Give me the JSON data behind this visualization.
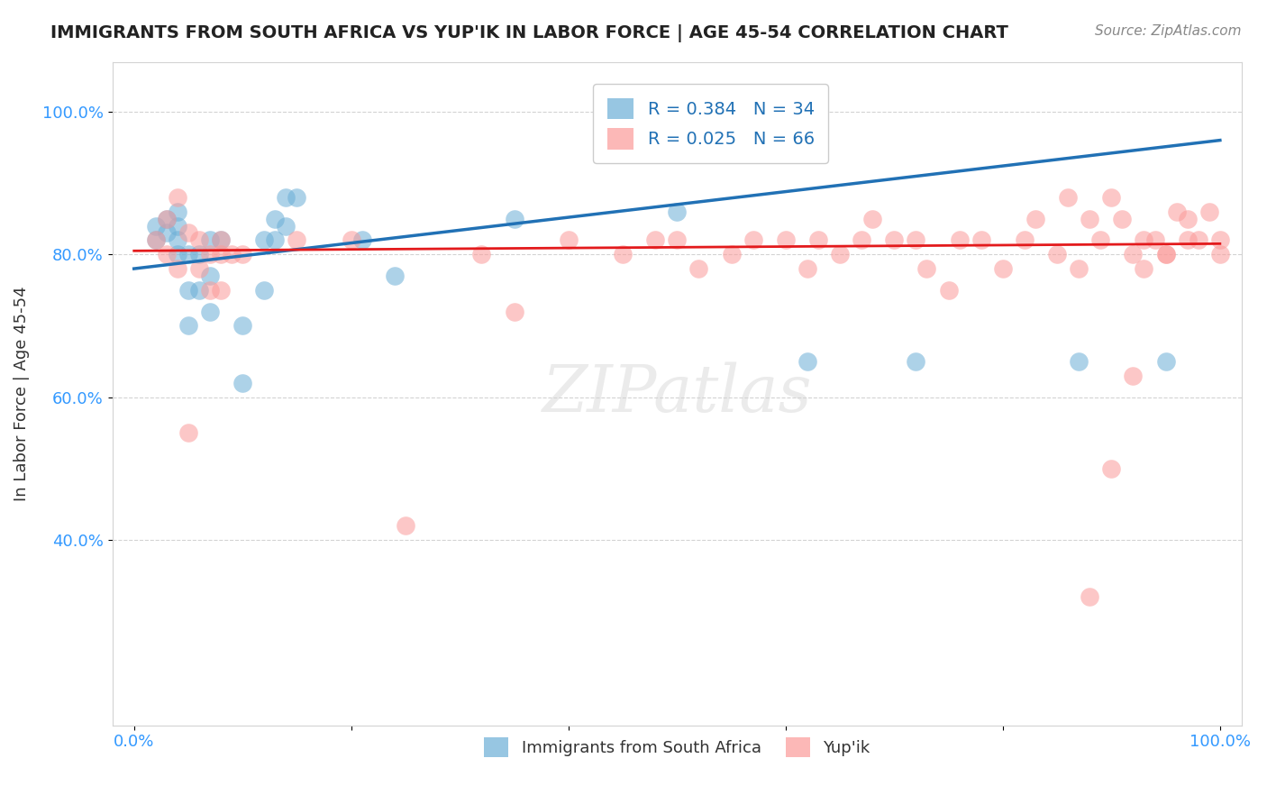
{
  "title": "IMMIGRANTS FROM SOUTH AFRICA VS YUP'IK IN LABOR FORCE | AGE 45-54 CORRELATION CHART",
  "source": "Source: ZipAtlas.com",
  "xlabel": "",
  "ylabel": "In Labor Force | Age 45-54",
  "xlim": [
    0.0,
    1.0
  ],
  "ylim": [
    0.2,
    1.05
  ],
  "xticks": [
    0.0,
    0.2,
    0.4,
    0.6,
    0.8,
    1.0
  ],
  "xtick_labels": [
    "0.0%",
    "",
    "",
    "",
    "",
    "100.0%"
  ],
  "ytick_labels": [
    "40.0%",
    "60.0%",
    "80.0%",
    "100.0%"
  ],
  "yticks": [
    0.4,
    0.6,
    0.8,
    1.0
  ],
  "legend_entries": [
    "Immigrants from South Africa",
    "Yup'ik"
  ],
  "R_blue": 0.384,
  "N_blue": 34,
  "R_pink": 0.025,
  "N_pink": 66,
  "blue_color": "#6baed6",
  "pink_color": "#fb9a99",
  "line_blue": "#2171b5",
  "line_pink": "#e31a1c",
  "watermark": "ZIPatlas",
  "blue_scatter_x": [
    0.02,
    0.02,
    0.03,
    0.03,
    0.04,
    0.04,
    0.04,
    0.04,
    0.05,
    0.05,
    0.05,
    0.06,
    0.06,
    0.07,
    0.07,
    0.07,
    0.08,
    0.1,
    0.1,
    0.12,
    0.12,
    0.13,
    0.13,
    0.14,
    0.14,
    0.15,
    0.21,
    0.24,
    0.35,
    0.5,
    0.62,
    0.72,
    0.87,
    0.95
  ],
  "blue_scatter_y": [
    0.82,
    0.84,
    0.83,
    0.85,
    0.8,
    0.82,
    0.84,
    0.86,
    0.7,
    0.75,
    0.8,
    0.75,
    0.8,
    0.72,
    0.77,
    0.82,
    0.82,
    0.62,
    0.7,
    0.75,
    0.82,
    0.82,
    0.85,
    0.84,
    0.88,
    0.88,
    0.82,
    0.77,
    0.85,
    0.86,
    0.65,
    0.65,
    0.65,
    0.65
  ],
  "pink_scatter_x": [
    0.02,
    0.03,
    0.03,
    0.04,
    0.04,
    0.05,
    0.05,
    0.06,
    0.06,
    0.07,
    0.07,
    0.08,
    0.08,
    0.08,
    0.09,
    0.1,
    0.15,
    0.2,
    0.25,
    0.32,
    0.35,
    0.4,
    0.45,
    0.48,
    0.5,
    0.52,
    0.55,
    0.57,
    0.6,
    0.62,
    0.63,
    0.65,
    0.67,
    0.68,
    0.7,
    0.72,
    0.73,
    0.75,
    0.76,
    0.78,
    0.8,
    0.82,
    0.83,
    0.85,
    0.86,
    0.87,
    0.88,
    0.89,
    0.9,
    0.91,
    0.92,
    0.93,
    0.93,
    0.94,
    0.95,
    0.96,
    0.97,
    0.97,
    0.98,
    0.99,
    1.0,
    1.0,
    0.88,
    0.9,
    0.92,
    0.95
  ],
  "pink_scatter_y": [
    0.82,
    0.8,
    0.85,
    0.78,
    0.88,
    0.55,
    0.83,
    0.78,
    0.82,
    0.75,
    0.8,
    0.8,
    0.82,
    0.75,
    0.8,
    0.8,
    0.82,
    0.82,
    0.42,
    0.8,
    0.72,
    0.82,
    0.8,
    0.82,
    0.82,
    0.78,
    0.8,
    0.82,
    0.82,
    0.78,
    0.82,
    0.8,
    0.82,
    0.85,
    0.82,
    0.82,
    0.78,
    0.75,
    0.82,
    0.82,
    0.78,
    0.82,
    0.85,
    0.8,
    0.88,
    0.78,
    0.85,
    0.82,
    0.88,
    0.85,
    0.8,
    0.82,
    0.78,
    0.82,
    0.8,
    0.86,
    0.82,
    0.85,
    0.82,
    0.86,
    0.8,
    0.82,
    0.32,
    0.5,
    0.63,
    0.8
  ],
  "blue_line_x": [
    0.0,
    1.0
  ],
  "blue_line_y_start": 0.78,
  "blue_line_y_end": 0.96,
  "pink_line_x": [
    0.0,
    1.0
  ],
  "pink_line_y_start": 0.805,
  "pink_line_y_end": 0.815
}
